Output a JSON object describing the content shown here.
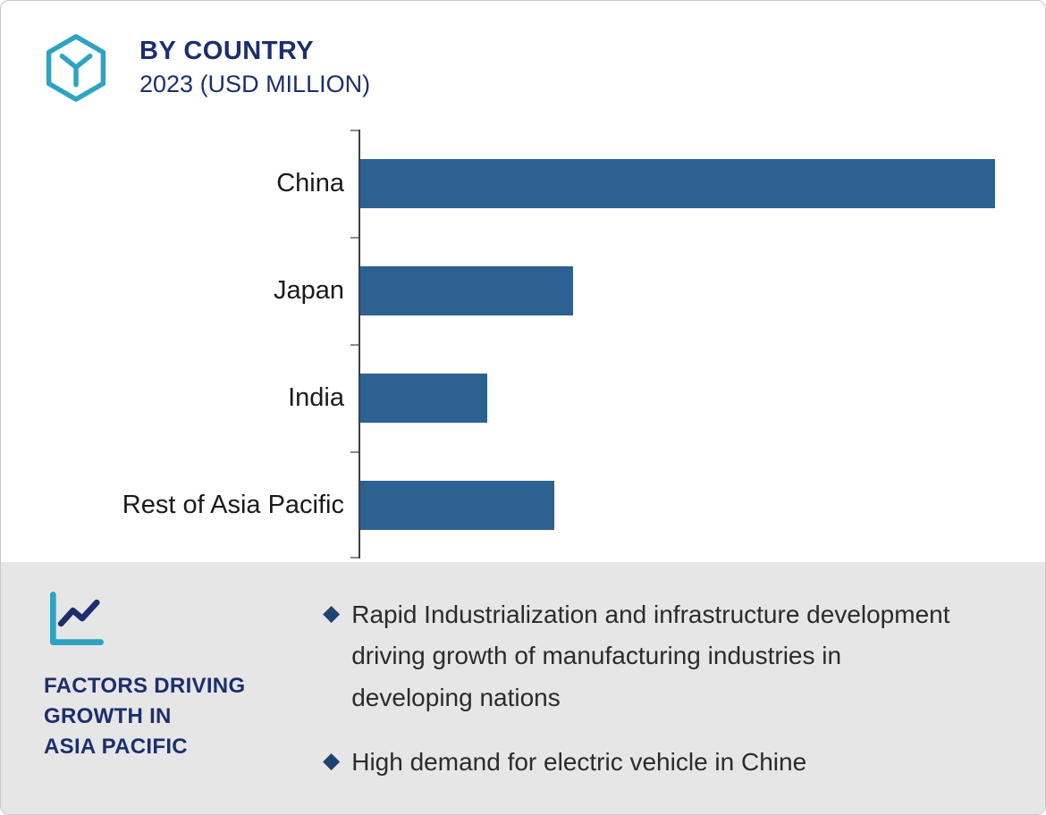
{
  "header": {
    "title": "BY COUNTRY",
    "subtitle": "2023 (USD MILLION)",
    "logo_icon": "hexagon-cube-logo-icon"
  },
  "chart_data": {
    "type": "bar",
    "orientation": "horizontal",
    "title": "BY COUNTRY",
    "subtitle": "2023 (USD MILLION)",
    "categories": [
      "China",
      "Japan",
      "India",
      "Rest of Asia Pacific"
    ],
    "values": [
      100,
      33.5,
      20,
      30.5
    ],
    "xlim": [
      0,
      100
    ],
    "value_axis_labels_visible": false,
    "grid": false,
    "bar_color": "#2d6191",
    "xlabel": "",
    "ylabel": ""
  },
  "footer": {
    "icon": "line-chart-icon",
    "heading_lines": [
      "FACTORS DRIVING",
      "GROWTH IN",
      "ASIA PACIFIC"
    ],
    "bullet_marker": "◆",
    "bullets": [
      "Rapid Industrialization and infrastructure development driving growth of manufacturing industries in developing nations",
      "High demand for electric vehicle in Chine"
    ]
  },
  "colors": {
    "accent_teal": "#2ea3c2",
    "navy": "#1b2f6d",
    "bar_blue": "#2d6191",
    "panel_gray": "#e7e6e6",
    "bullet_navy": "#1d4370"
  }
}
